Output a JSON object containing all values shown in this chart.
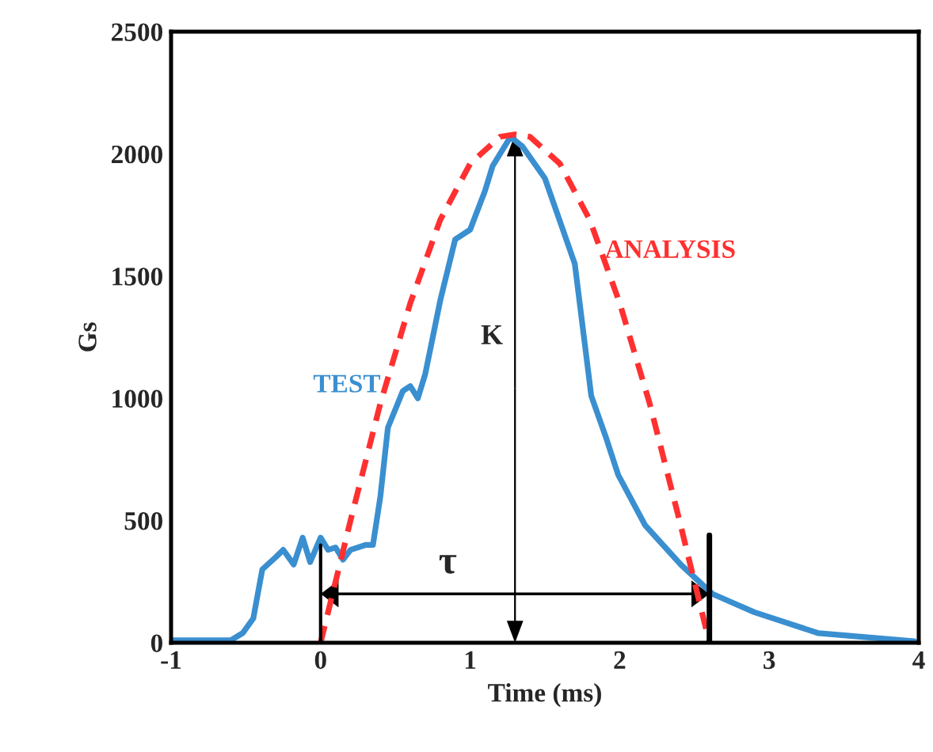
{
  "chart_data": {
    "type": "line",
    "xlabel": "Time (ms)",
    "ylabel": "Gs",
    "xlim": [
      -1,
      4
    ],
    "xticks": [
      -1,
      0,
      1,
      2,
      3,
      4
    ],
    "ylim": [
      0,
      2500
    ],
    "yticks": [
      0,
      500,
      1000,
      1500,
      2000,
      2500
    ],
    "grid": false,
    "legend": false,
    "series": [
      {
        "name": "TEST",
        "color": "#3a8fd0",
        "line_style": "solid",
        "x": [
          -1,
          -0.6,
          -0.52,
          -0.45,
          -0.39,
          -0.3,
          -0.25,
          -0.18,
          -0.12,
          -0.07,
          0,
          0.05,
          0.1,
          0.15,
          0.2,
          0.3,
          0.35,
          0.4,
          0.45,
          0.55,
          0.6,
          0.65,
          0.7,
          0.8,
          0.9,
          1.0,
          1.1,
          1.15,
          1.2,
          1.27,
          1.35,
          1.5,
          1.7,
          1.81,
          1.91,
          1.99,
          2.17,
          2.41,
          2.62,
          2.9,
          3.33,
          3.97
        ],
        "values": [
          10,
          10,
          40,
          100,
          300,
          350,
          380,
          320,
          430,
          330,
          430,
          380,
          390,
          340,
          380,
          400,
          400,
          600,
          880,
          1030,
          1050,
          1000,
          1100,
          1400,
          1650,
          1690,
          1850,
          1950,
          2000,
          2070,
          2030,
          1900,
          1550,
          1010,
          837,
          687,
          481,
          319,
          200,
          125,
          39,
          6
        ]
      },
      {
        "name": "ANALYSIS",
        "color": "#ff3030",
        "line_style": "dashed",
        "x": [
          0,
          0.2,
          0.4,
          0.6,
          0.8,
          1.0,
          1.2,
          1.3,
          1.4,
          1.6,
          1.8,
          2.0,
          2.2,
          2.4,
          2.6
        ],
        "values": [
          0,
          500,
          980,
          1390,
          1730,
          1960,
          2070,
          2080,
          2070,
          1960,
          1730,
          1390,
          980,
          500,
          0
        ]
      }
    ],
    "annotations": [
      "K",
      "τ"
    ]
  }
}
